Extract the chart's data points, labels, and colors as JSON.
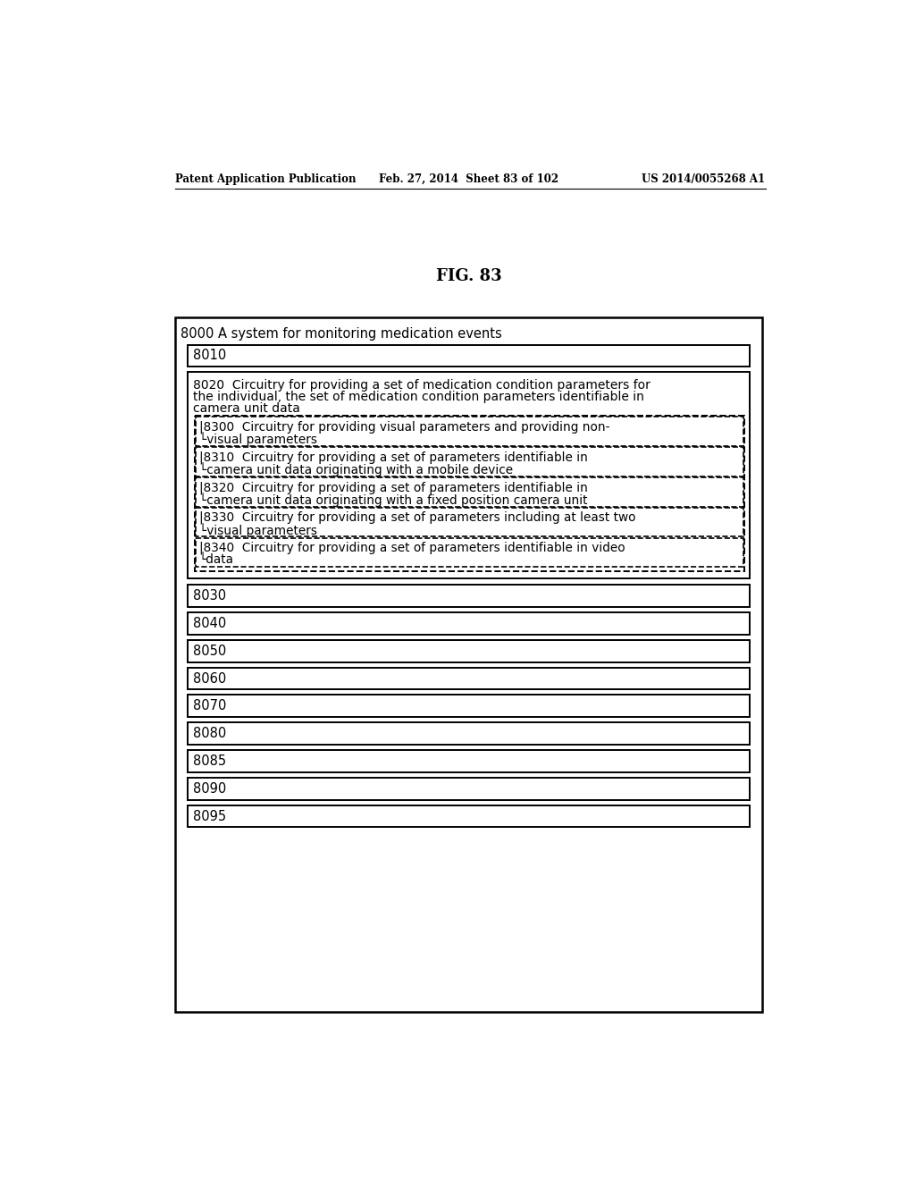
{
  "bg_color": "#ffffff",
  "header_left": "Patent Application Publication",
  "header_mid": "Feb. 27, 2014  Sheet 83 of 102",
  "header_right": "US 2014/0055268 A1",
  "fig_label": "FIG. 83",
  "outer_box_label": "8000 A system for monitoring medication events",
  "box_8010": "8010",
  "box_8020_line1": "8020  Circuitry for providing a set of medication condition parameters for",
  "box_8020_line2": "the individual, the set of medication condition parameters identifiable in",
  "box_8020_line3": "camera unit data",
  "box_8300_line1": "|8300  Circuitry for providing visual parameters and providing non-",
  "box_8300_line2": "└visual parameters",
  "box_8310_line1": "|8310  Circuitry for providing a set of parameters identifiable in",
  "box_8310_line2": "└camera unit data originating with a mobile device",
  "box_8320_line1": "|8320  Circuitry for providing a set of parameters identifiable in",
  "box_8320_line2": "└camera unit data originating with a fixed position camera unit",
  "box_8330_line1": "|8330  Circuitry for providing a set of parameters including at least two",
  "box_8330_line2": "└visual parameters",
  "box_8340_line1": "|8340  Circuitry for providing a set of parameters identifiable in video",
  "box_8340_line2": "└data",
  "simple_boxes": [
    "8030",
    "8040",
    "8050",
    "8060",
    "8070",
    "8080",
    "8085",
    "8090",
    "8095"
  ]
}
